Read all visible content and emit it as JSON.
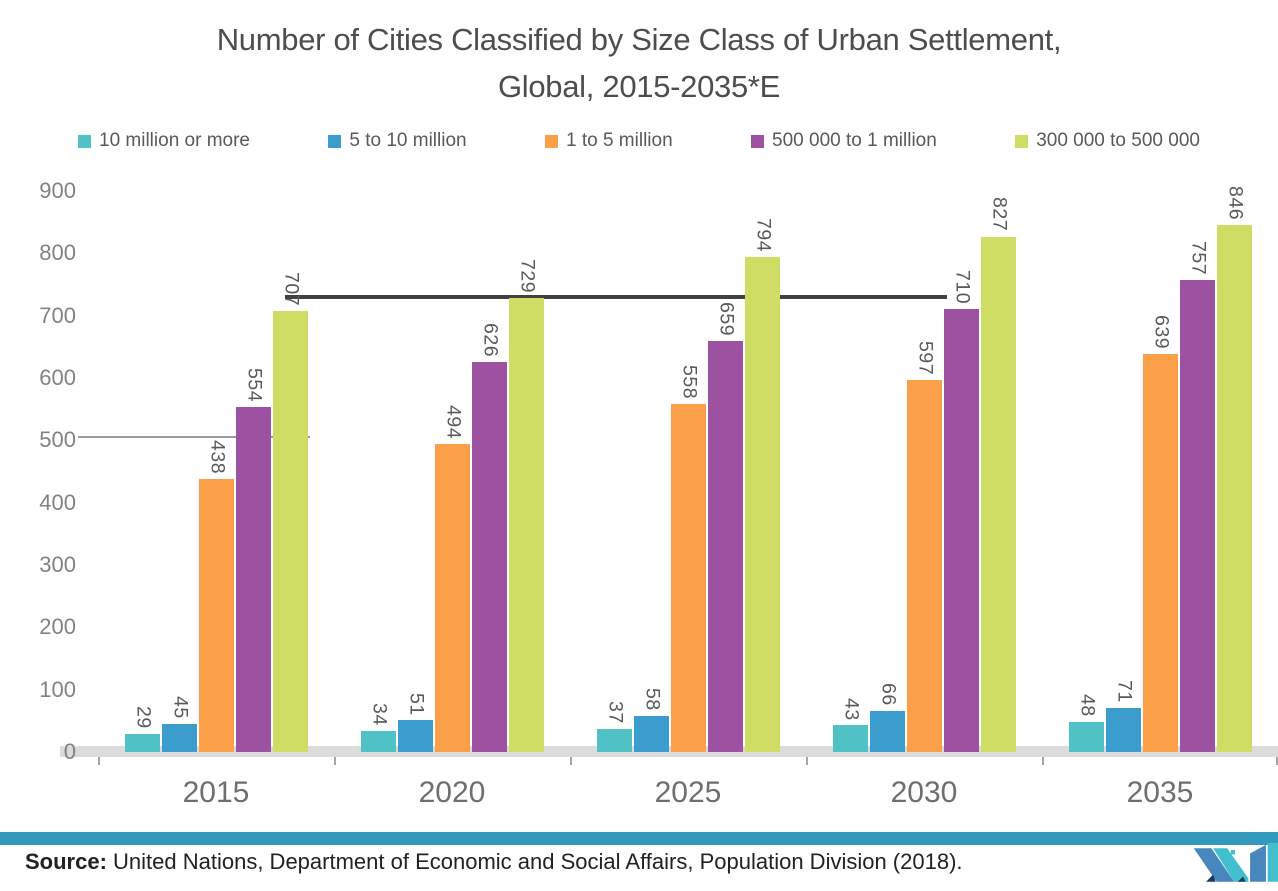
{
  "title": {
    "line1": "Number of Cities Classified by Size Class of Urban Settlement,",
    "line2": "Global, 2015-2035*E"
  },
  "chart_data": {
    "type": "bar",
    "title": "Number of Cities Classified by Size Class of Urban Settlement, Global, 2015-2035*E",
    "categories": [
      "2015",
      "2020",
      "2025",
      "2030",
      "2035"
    ],
    "series": [
      {
        "name": "10 million or more",
        "color": "#50c2c5",
        "values": [
          29,
          34,
          37,
          43,
          48
        ]
      },
      {
        "name": "5 to 10 million",
        "color": "#3b9cce",
        "values": [
          45,
          51,
          58,
          66,
          71
        ]
      },
      {
        "name": "1 to 5 million",
        "color": "#fb9f49",
        "values": [
          438,
          494,
          558,
          597,
          639
        ]
      },
      {
        "name": "500 000 to 1 million",
        "color": "#9c52a1",
        "values": [
          554,
          626,
          659,
          710,
          757
        ]
      },
      {
        "name": "300 000 to 500 000",
        "color": "#cfdd64",
        "values": [
          707,
          729,
          794,
          827,
          846
        ]
      }
    ],
    "xlabel": "",
    "ylabel": "",
    "ylim": [
      0,
      900
    ],
    "ytick_step": 100,
    "grid": false,
    "legend_position": "top",
    "data_labels": "rotated-90cw-above-bars"
  },
  "source": {
    "label": "Source:",
    "text": " United Nations, Department of Economic and Social Affairs, Population Division (2018)."
  },
  "brand": {
    "logo_name": "mordor-intelligence-logo",
    "colors": {
      "steel_blue": "#4787bd",
      "cyan": "#41bfce",
      "navy": "#1c3a60",
      "divider": "#3399be"
    }
  }
}
